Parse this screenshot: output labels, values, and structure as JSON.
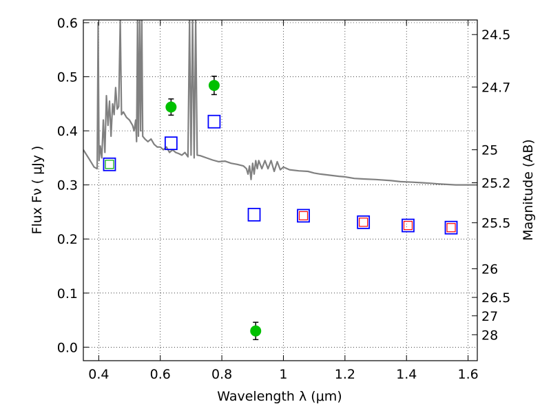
{
  "chart_data": {
    "type": "scatter",
    "xlabel": "Wavelength  λ (μm)",
    "ylabel": "Flux  Fν  ( μJy )",
    "ylabel_right": "Magnitude (AB)",
    "xlim": [
      0.35,
      1.63
    ],
    "ylim": [
      -0.025,
      0.605
    ],
    "grid": true,
    "x_ticks": [
      0.4,
      0.6,
      0.8,
      1.0,
      1.2,
      1.4,
      1.6
    ],
    "x_tick_labels": [
      "0.4",
      "0.6",
      "0.8",
      "1",
      "1.2",
      "1.4",
      "1.6"
    ],
    "y_ticks": [
      0.0,
      0.1,
      0.2,
      0.3,
      0.4,
      0.5,
      0.6
    ],
    "y_tick_labels": [
      "0.0",
      "0.1",
      "0.2",
      "0.3",
      "0.4",
      "0.5",
      "0.6"
    ],
    "right_ticks": [
      {
        "label": "24.5",
        "flux": 0.578
      },
      {
        "label": "24.7",
        "flux": 0.481
      },
      {
        "label": "25",
        "flux": 0.365
      },
      {
        "label": "25.2",
        "flux": 0.304
      },
      {
        "label": "25.5",
        "flux": 0.23
      },
      {
        "label": "26",
        "flux": 0.145
      },
      {
        "label": "26.5",
        "flux": 0.092
      },
      {
        "label": "27",
        "flux": 0.058
      },
      {
        "label": "28",
        "flux": 0.023
      }
    ],
    "series": [
      {
        "marker": "circle",
        "color": "#00c000",
        "points": [
          {
            "x": 0.635,
            "y": 0.444,
            "err": 0.015
          },
          {
            "x": 0.775,
            "y": 0.484,
            "err": 0.017
          },
          {
            "x": 0.91,
            "y": 0.03,
            "err": 0.016
          }
        ]
      },
      {
        "marker": "open-square",
        "color": "#0000ff",
        "points": [
          {
            "x": 0.435,
            "y": 0.338
          },
          {
            "x": 0.635,
            "y": 0.377
          },
          {
            "x": 0.775,
            "y": 0.417
          },
          {
            "x": 0.905,
            "y": 0.245
          },
          {
            "x": 1.065,
            "y": 0.243
          },
          {
            "x": 1.26,
            "y": 0.231
          },
          {
            "x": 1.405,
            "y": 0.225
          },
          {
            "x": 1.545,
            "y": 0.221
          }
        ]
      },
      {
        "marker": "open-square-small",
        "color": "#ff0000",
        "points": [
          {
            "x": 1.065,
            "y": 0.243
          },
          {
            "x": 1.26,
            "y": 0.231
          },
          {
            "x": 1.405,
            "y": 0.225
          },
          {
            "x": 1.545,
            "y": 0.221
          }
        ]
      },
      {
        "marker": "open-square-small",
        "color": "#00aa00",
        "points": [
          {
            "x": 0.435,
            "y": 0.338
          }
        ]
      },
      {
        "marker": "line",
        "color": "#808080",
        "points": [
          {
            "x": 0.35,
            "y": 0.365
          },
          {
            "x": 0.37,
            "y": 0.347
          },
          {
            "x": 0.385,
            "y": 0.333
          },
          {
            "x": 0.395,
            "y": 0.33
          },
          {
            "x": 0.398,
            "y": 0.6
          },
          {
            "x": 0.401,
            "y": 0.345
          },
          {
            "x": 0.405,
            "y": 0.372
          },
          {
            "x": 0.41,
            "y": 0.35
          },
          {
            "x": 0.415,
            "y": 0.42
          },
          {
            "x": 0.42,
            "y": 0.36
          },
          {
            "x": 0.425,
            "y": 0.465
          },
          {
            "x": 0.43,
            "y": 0.41
          },
          {
            "x": 0.435,
            "y": 0.455
          },
          {
            "x": 0.44,
            "y": 0.39
          },
          {
            "x": 0.445,
            "y": 0.45
          },
          {
            "x": 0.45,
            "y": 0.43
          },
          {
            "x": 0.455,
            "y": 0.48
          },
          {
            "x": 0.46,
            "y": 0.44
          },
          {
            "x": 0.465,
            "y": 0.445
          },
          {
            "x": 0.47,
            "y": 0.605
          },
          {
            "x": 0.474,
            "y": 0.43
          },
          {
            "x": 0.48,
            "y": 0.435
          },
          {
            "x": 0.49,
            "y": 0.425
          },
          {
            "x": 0.5,
            "y": 0.42
          },
          {
            "x": 0.51,
            "y": 0.41
          },
          {
            "x": 0.515,
            "y": 0.4
          },
          {
            "x": 0.52,
            "y": 0.42
          },
          {
            "x": 0.523,
            "y": 0.38
          },
          {
            "x": 0.526,
            "y": 0.605
          },
          {
            "x": 0.529,
            "y": 0.39
          },
          {
            "x": 0.533,
            "y": 0.605
          },
          {
            "x": 0.536,
            "y": 0.4
          },
          {
            "x": 0.54,
            "y": 0.605
          },
          {
            "x": 0.543,
            "y": 0.39
          },
          {
            "x": 0.55,
            "y": 0.385
          },
          {
            "x": 0.56,
            "y": 0.38
          },
          {
            "x": 0.57,
            "y": 0.385
          },
          {
            "x": 0.58,
            "y": 0.375
          },
          {
            "x": 0.59,
            "y": 0.37
          },
          {
            "x": 0.6,
            "y": 0.37
          },
          {
            "x": 0.61,
            "y": 0.365
          },
          {
            "x": 0.62,
            "y": 0.37
          },
          {
            "x": 0.63,
            "y": 0.36
          },
          {
            "x": 0.64,
            "y": 0.365
          },
          {
            "x": 0.65,
            "y": 0.36
          },
          {
            "x": 0.66,
            "y": 0.358
          },
          {
            "x": 0.67,
            "y": 0.355
          },
          {
            "x": 0.68,
            "y": 0.36
          },
          {
            "x": 0.69,
            "y": 0.352
          },
          {
            "x": 0.695,
            "y": 0.605
          },
          {
            "x": 0.7,
            "y": 0.355
          },
          {
            "x": 0.705,
            "y": 0.605
          },
          {
            "x": 0.71,
            "y": 0.35
          },
          {
            "x": 0.715,
            "y": 0.605
          },
          {
            "x": 0.72,
            "y": 0.355
          },
          {
            "x": 0.73,
            "y": 0.354
          },
          {
            "x": 0.75,
            "y": 0.35
          },
          {
            "x": 0.77,
            "y": 0.346
          },
          {
            "x": 0.79,
            "y": 0.343
          },
          {
            "x": 0.81,
            "y": 0.344
          },
          {
            "x": 0.83,
            "y": 0.34
          },
          {
            "x": 0.85,
            "y": 0.338
          },
          {
            "x": 0.87,
            "y": 0.335
          },
          {
            "x": 0.88,
            "y": 0.33
          },
          {
            "x": 0.885,
            "y": 0.32
          },
          {
            "x": 0.89,
            "y": 0.335
          },
          {
            "x": 0.895,
            "y": 0.31
          },
          {
            "x": 0.9,
            "y": 0.34
          },
          {
            "x": 0.905,
            "y": 0.32
          },
          {
            "x": 0.91,
            "y": 0.345
          },
          {
            "x": 0.915,
            "y": 0.33
          },
          {
            "x": 0.92,
            "y": 0.345
          },
          {
            "x": 0.93,
            "y": 0.33
          },
          {
            "x": 0.94,
            "y": 0.345
          },
          {
            "x": 0.95,
            "y": 0.33
          },
          {
            "x": 0.96,
            "y": 0.345
          },
          {
            "x": 0.97,
            "y": 0.325
          },
          {
            "x": 0.98,
            "y": 0.343
          },
          {
            "x": 0.99,
            "y": 0.328
          },
          {
            "x": 1.0,
            "y": 0.333
          },
          {
            "x": 1.02,
            "y": 0.328
          },
          {
            "x": 1.05,
            "y": 0.326
          },
          {
            "x": 1.08,
            "y": 0.325
          },
          {
            "x": 1.1,
            "y": 0.322
          },
          {
            "x": 1.12,
            "y": 0.32
          },
          {
            "x": 1.15,
            "y": 0.318
          },
          {
            "x": 1.18,
            "y": 0.316
          },
          {
            "x": 1.2,
            "y": 0.315
          },
          {
            "x": 1.23,
            "y": 0.312
          },
          {
            "x": 1.26,
            "y": 0.311
          },
          {
            "x": 1.3,
            "y": 0.31
          },
          {
            "x": 1.35,
            "y": 0.308
          },
          {
            "x": 1.38,
            "y": 0.306
          },
          {
            "x": 1.42,
            "y": 0.305
          },
          {
            "x": 1.45,
            "y": 0.304
          },
          {
            "x": 1.48,
            "y": 0.303
          },
          {
            "x": 1.5,
            "y": 0.302
          },
          {
            "x": 1.53,
            "y": 0.301
          },
          {
            "x": 1.56,
            "y": 0.3
          },
          {
            "x": 1.6,
            "y": 0.3
          },
          {
            "x": 1.63,
            "y": 0.3
          }
        ]
      }
    ]
  }
}
